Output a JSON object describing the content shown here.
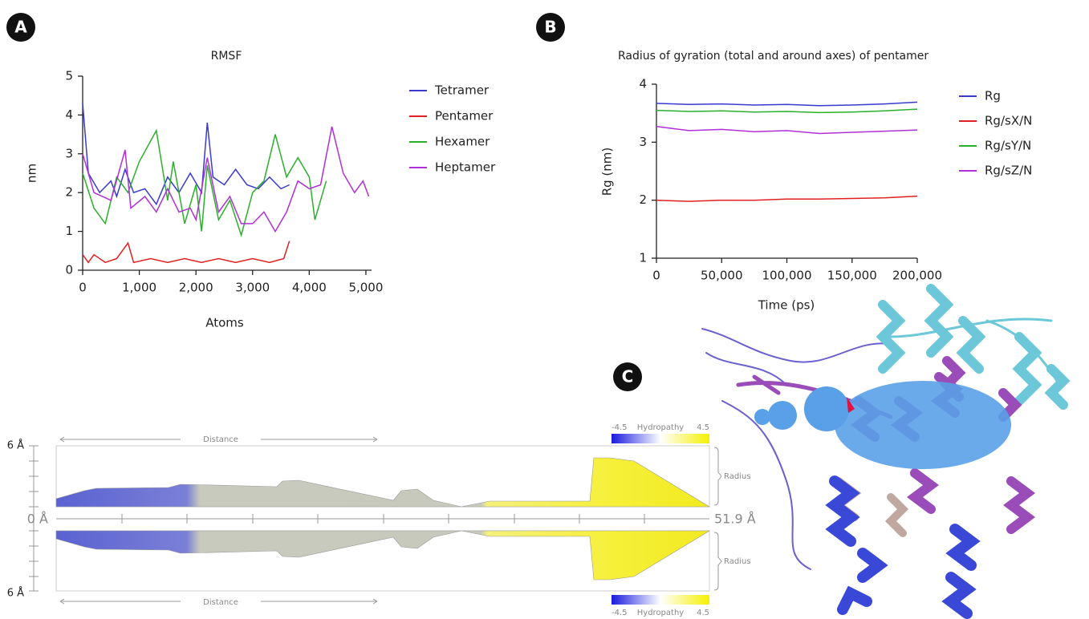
{
  "chart_data": [
    {
      "type": "line",
      "panel_label": "A",
      "title": "RMSF",
      "x_label": "Atoms",
      "y_label": "nm",
      "xlim": [
        0,
        5100
      ],
      "ylim": [
        0,
        5
      ],
      "xticks": [
        0,
        {
          "value": 1000,
          "label": "1,000"
        },
        {
          "value": 2000,
          "label": "2,000"
        },
        {
          "value": 3000,
          "label": "3,000"
        },
        {
          "value": 4000,
          "label": "4,000"
        },
        {
          "value": 5000,
          "label": "5,000"
        }
      ],
      "yticks": [
        0,
        1,
        2,
        3,
        4,
        5
      ],
      "series": [
        {
          "name": "Tetramer",
          "color": "#3a3ad0",
          "x": [
            0,
            100,
            300,
            500,
            600,
            750,
            900,
            1100,
            1300,
            1500,
            1700,
            1900,
            2100,
            2200,
            2300,
            2500,
            2700,
            2900,
            3100,
            3300,
            3500,
            3650
          ],
          "values": [
            4.3,
            2.5,
            2.0,
            2.3,
            1.9,
            2.6,
            2.0,
            2.1,
            1.7,
            2.4,
            2.0,
            2.5,
            2.0,
            3.8,
            2.4,
            2.2,
            2.6,
            2.2,
            2.1,
            2.4,
            2.1,
            2.2
          ]
        },
        {
          "name": "Pentamer",
          "color": "#e02020",
          "x": [
            0,
            100,
            200,
            400,
            600,
            800,
            900,
            1200,
            1500,
            1800,
            2100,
            2400,
            2700,
            3000,
            3300,
            3550,
            3650
          ],
          "values": [
            0.4,
            0.2,
            0.4,
            0.2,
            0.3,
            0.7,
            0.2,
            0.3,
            0.2,
            0.3,
            0.2,
            0.3,
            0.2,
            0.3,
            0.2,
            0.3,
            0.75
          ]
        },
        {
          "name": "Hexamer",
          "color": "#2ab02a",
          "x": [
            0,
            200,
            400,
            600,
            800,
            1000,
            1300,
            1500,
            1600,
            1800,
            2000,
            2100,
            2200,
            2400,
            2600,
            2800,
            3000,
            3200,
            3400,
            3600,
            3800,
            4000,
            4100,
            4300
          ],
          "values": [
            2.5,
            1.6,
            1.2,
            2.4,
            2.0,
            2.8,
            3.6,
            1.8,
            2.8,
            1.2,
            2.2,
            1.0,
            2.7,
            1.3,
            1.8,
            0.9,
            2.0,
            2.3,
            3.5,
            2.4,
            2.9,
            2.4,
            1.3,
            2.3
          ]
        },
        {
          "name": "Heptamer",
          "color": "#b030d8",
          "x": [
            0,
            200,
            500,
            750,
            850,
            1100,
            1300,
            1500,
            1700,
            1900,
            2000,
            2200,
            2400,
            2600,
            2800,
            3000,
            3200,
            3400,
            3600,
            3800,
            4000,
            4200,
            4400,
            4600,
            4800,
            4950,
            5050
          ],
          "values": [
            3.0,
            2.0,
            1.8,
            3.1,
            1.6,
            1.9,
            1.5,
            2.1,
            1.5,
            1.6,
            1.3,
            2.9,
            1.5,
            1.9,
            1.2,
            1.2,
            1.5,
            1.0,
            1.5,
            2.3,
            2.1,
            2.2,
            3.7,
            2.5,
            2.0,
            2.3,
            1.9
          ]
        }
      ]
    },
    {
      "type": "line",
      "panel_label": "B",
      "title": "Radius of gyration (total and around axes) of pentamer",
      "x_label": "Time (ps)",
      "y_label": "Rg (nm)",
      "xlim": [
        0,
        200000
      ],
      "ylim": [
        1,
        4
      ],
      "xticks": [
        0,
        {
          "value": 50000,
          "label": "50,000"
        },
        {
          "value": 100000,
          "label": "100,000"
        },
        {
          "value": 150000,
          "label": "150,000"
        },
        {
          "value": 200000,
          "label": "200,000"
        }
      ],
      "yticks": [
        1,
        2,
        3,
        4
      ],
      "series": [
        {
          "name": "Rg",
          "color": "#3a3ad0",
          "x": [
            0,
            25000,
            50000,
            75000,
            100000,
            125000,
            150000,
            175000,
            200000
          ],
          "values": [
            3.67,
            3.65,
            3.66,
            3.64,
            3.65,
            3.63,
            3.64,
            3.66,
            3.69
          ]
        },
        {
          "name": "Rg/sX/N",
          "color": "#e02020",
          "x": [
            0,
            25000,
            50000,
            75000,
            100000,
            125000,
            150000,
            175000,
            200000
          ],
          "values": [
            2.0,
            1.98,
            2.0,
            2.0,
            2.02,
            2.02,
            2.03,
            2.04,
            2.07
          ]
        },
        {
          "name": "Rg/sY/N",
          "color": "#2ab02a",
          "x": [
            0,
            25000,
            50000,
            75000,
            100000,
            125000,
            150000,
            175000,
            200000
          ],
          "values": [
            3.55,
            3.53,
            3.54,
            3.52,
            3.53,
            3.51,
            3.52,
            3.54,
            3.57
          ]
        },
        {
          "name": "Rg/sZ/N",
          "color": "#b030d8",
          "x": [
            0,
            25000,
            50000,
            75000,
            100000,
            125000,
            150000,
            175000,
            200000
          ],
          "values": [
            3.27,
            3.2,
            3.22,
            3.18,
            3.2,
            3.15,
            3.17,
            3.19,
            3.21
          ]
        }
      ]
    }
  ],
  "channel_profile": {
    "scale_top": "6 Å",
    "origin": "0 Å",
    "scale_bottom": "6 Å",
    "length": "51.9 Å",
    "distance_top": "Distance",
    "distance_bottom": "Distance",
    "radius_top": "Radius",
    "radius_bottom": "Radius",
    "hydropathy_top": {
      "min": "-4.5",
      "label": "Hydropathy",
      "max": "4.5"
    },
    "hydropathy_bottom": {
      "min": "-4.5",
      "label": "Hydropathy",
      "max": "4.5"
    }
  },
  "structure": {
    "panel_label": "C"
  }
}
